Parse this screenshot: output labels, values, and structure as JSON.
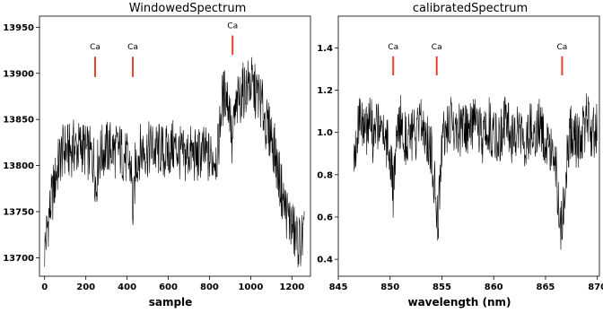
{
  "chart_data": [
    {
      "type": "line",
      "title": "WindowedSpectrum",
      "xlabel": "sample",
      "ylabel": "",
      "xlim": [
        -25,
        1290
      ],
      "ylim": [
        13680,
        13962
      ],
      "xticks": [
        0,
        200,
        400,
        600,
        800,
        1000,
        1200
      ],
      "yticks": [
        13700,
        13750,
        13800,
        13850,
        13900,
        13950
      ],
      "line_color": "#000000",
      "series": [
        {
          "x": [
            0,
            20,
            40,
            60,
            80,
            100,
            120,
            140,
            160,
            180,
            200,
            220,
            240,
            250,
            260,
            280,
            300,
            320,
            340,
            360,
            380,
            400,
            420,
            430,
            440,
            460,
            480,
            500,
            520,
            540,
            560,
            580,
            600,
            620,
            640,
            660,
            680,
            700,
            720,
            740,
            760,
            780,
            800,
            820,
            840,
            860,
            880,
            900,
            910,
            920,
            940,
            960,
            980,
            1000,
            1020,
            1040,
            1060,
            1080,
            1100,
            1120,
            1140,
            1160,
            1180,
            1200,
            1220,
            1240,
            1260
          ],
          "y": [
            13710,
            13745,
            13770,
            13795,
            13812,
            13818,
            13815,
            13820,
            13818,
            13822,
            13815,
            13812,
            13805,
            13775,
            13808,
            13815,
            13818,
            13820,
            13815,
            13818,
            13812,
            13805,
            13798,
            13740,
            13800,
            13815,
            13818,
            13816,
            13820,
            13815,
            13818,
            13812,
            13815,
            13820,
            13818,
            13812,
            13808,
            13815,
            13812,
            13808,
            13815,
            13812,
            13808,
            13810,
            13812,
            13870,
            13880,
            13860,
            13815,
            13850,
            13870,
            13880,
            13885,
            13890,
            13880,
            13875,
            13860,
            13840,
            13835,
            13810,
            13785,
            13760,
            13745,
            13735,
            13720,
            13718,
            13722
          ]
        }
      ],
      "annotations": [
        {
          "label": "Ca",
          "x": 245,
          "y_top": 13918,
          "y_bottom": 13896,
          "color": "#e8412c"
        },
        {
          "label": "Ca",
          "x": 428,
          "y_top": 13918,
          "y_bottom": 13896,
          "color": "#e8412c"
        },
        {
          "label": "Ca",
          "x": 912,
          "y_top": 13941,
          "y_bottom": 13920,
          "color": "#e8412c"
        }
      ]
    },
    {
      "type": "line",
      "title": "calibratedSpectrum",
      "xlabel": "wavelength (nm)",
      "ylabel": "",
      "xlim": [
        845,
        870.2
      ],
      "ylim": [
        0.32,
        1.55
      ],
      "xticks": [
        845,
        850,
        855,
        860,
        865,
        870
      ],
      "yticks": [
        0.4,
        0.6,
        0.8,
        1.0,
        1.2,
        1.4
      ],
      "line_color": "#000000",
      "series": [
        {
          "x": [
            846.5,
            847,
            847.5,
            848,
            848.5,
            849,
            849.5,
            850,
            850.3,
            850.6,
            851,
            851.5,
            852,
            852.5,
            853,
            853.5,
            854,
            854.3,
            854.6,
            854.9,
            855.2,
            855.6,
            856,
            856.5,
            857,
            857.5,
            858,
            858.5,
            859,
            859.5,
            860,
            860.5,
            861,
            861.5,
            862,
            862.5,
            863,
            863.5,
            864,
            864.5,
            865,
            865.5,
            866,
            866.3,
            866.6,
            866.9,
            867.3,
            867.6,
            868,
            868.5,
            869,
            869.5,
            870
          ],
          "y": [
            0.92,
            1.05,
            0.98,
            1.08,
            0.95,
            1.1,
            0.98,
            0.92,
            0.7,
            0.95,
            1.05,
            0.98,
            1.0,
            0.96,
            1.04,
            1.0,
            0.9,
            0.75,
            0.58,
            0.85,
            1.02,
            1.0,
            1.06,
            1.0,
            1.03,
            0.98,
            1.05,
            1.0,
            0.97,
            1.04,
            1.0,
            0.96,
            1.05,
            1.0,
            0.98,
            1.03,
            0.96,
            1.02,
            0.98,
            1.04,
            0.97,
            0.95,
            0.85,
            0.62,
            0.55,
            0.78,
            0.98,
            1.02,
            0.95,
            1.0,
            1.06,
            0.98,
            1.02
          ]
        }
      ],
      "annotations": [
        {
          "label": "Ca",
          "x": 850.3,
          "y_top": 1.36,
          "y_bottom": 1.27,
          "color": "#e8412c"
        },
        {
          "label": "Ca",
          "x": 854.5,
          "y_top": 1.36,
          "y_bottom": 1.27,
          "color": "#e8412c"
        },
        {
          "label": "Ca",
          "x": 866.6,
          "y_top": 1.36,
          "y_bottom": 1.27,
          "color": "#e8412c"
        }
      ]
    }
  ]
}
